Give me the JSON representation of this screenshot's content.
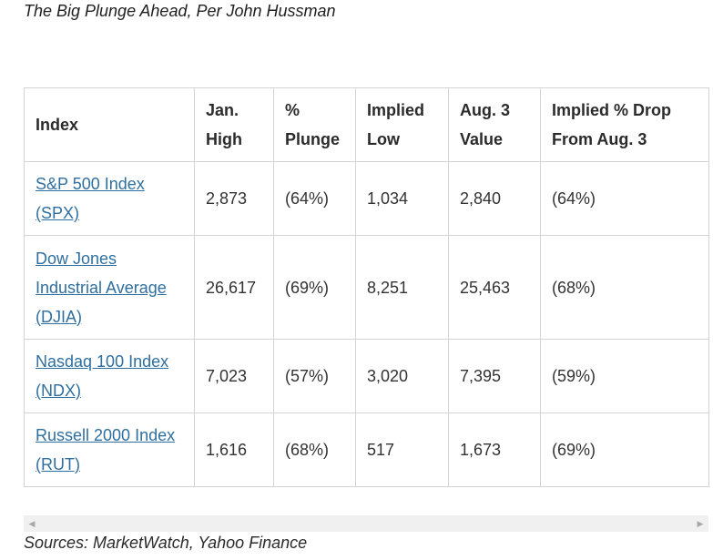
{
  "caption": "The Big Plunge Ahead, Per John Hussman",
  "table": {
    "headers": [
      "Index",
      "Jan. High",
      "% Plunge",
      "Implied Low",
      "Aug. 3 Value",
      "Implied % Drop From Aug. 3"
    ],
    "rows": [
      [
        "S&P 500 Index (SPX)",
        "2,873",
        "(64%)",
        "1,034",
        "2,840",
        "(64%)"
      ],
      [
        "Dow Jones Industrial Average (DJIA)",
        "26,617",
        "(69%)",
        "8,251",
        "25,463",
        "(68%)"
      ],
      [
        "Nasdaq 100 Index (NDX)",
        "7,023",
        "(57%)",
        "3,020",
        "7,395",
        "(59%)"
      ],
      [
        "Russell 2000 Index (RUT)",
        "1,616",
        "(68%)",
        "517",
        "1,673",
        "(69%)"
      ]
    ]
  },
  "scrollbar": {
    "left_arrow": "◀",
    "right_arrow": "▶"
  },
  "sources": "Sources: MarketWatch, Yahoo Finance",
  "colors": {
    "link": "#2f6f9f",
    "border": "#d4d4d4",
    "scrollbar_bg": "#f0f0f0"
  }
}
